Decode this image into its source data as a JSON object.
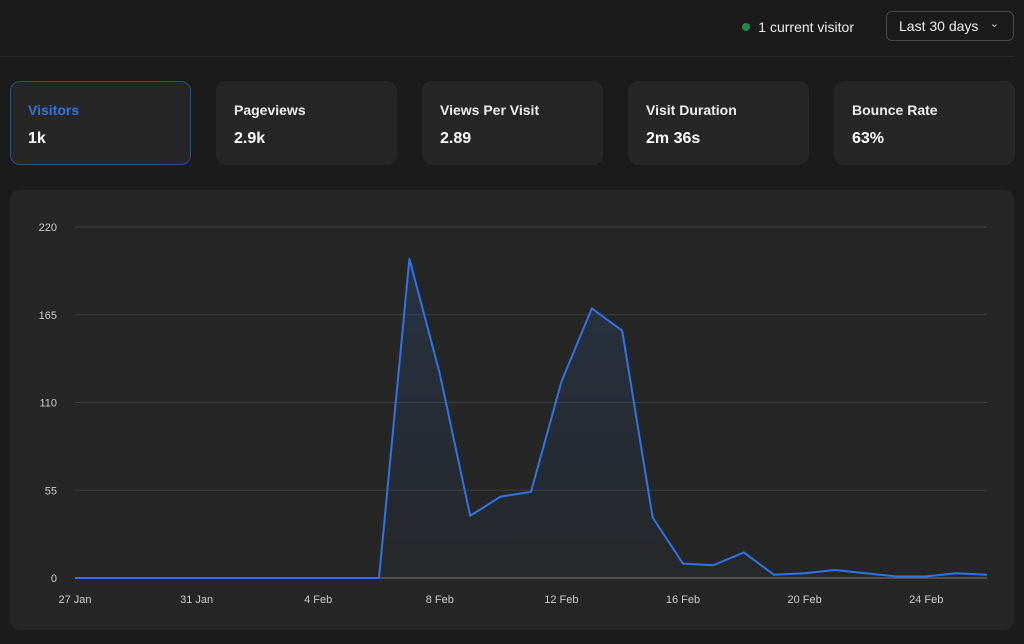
{
  "header": {
    "live_visitors": "1 current visitor",
    "live_color": "#1f8a4c",
    "range_label": "Last 30 days",
    "range_icon": "chevron-down-icon"
  },
  "metrics": [
    {
      "label": "Visitors",
      "value": "1k",
      "active": true
    },
    {
      "label": "Pageviews",
      "value": "2.9k",
      "active": false
    },
    {
      "label": "Views Per Visit",
      "value": "2.89",
      "active": false
    },
    {
      "label": "Visit Duration",
      "value": "2m 36s",
      "active": false
    },
    {
      "label": "Bounce Rate",
      "value": "63%",
      "active": false
    }
  ],
  "chart_data": {
    "type": "area",
    "accent": "#2f74e4",
    "ylim": [
      0,
      220
    ],
    "yticks": [
      "0",
      "55",
      "110",
      "165",
      "220"
    ],
    "xtick_labels": [
      "27 Jan",
      "31 Jan",
      "4 Feb",
      "8 Feb",
      "12 Feb",
      "16 Feb",
      "20 Feb",
      "24 Feb"
    ],
    "grid": true,
    "x": [
      "27 Jan",
      "28 Jan",
      "29 Jan",
      "30 Jan",
      "31 Jan",
      "1 Feb",
      "2 Feb",
      "3 Feb",
      "4 Feb",
      "5 Feb",
      "6 Feb",
      "7 Feb",
      "8 Feb",
      "9 Feb",
      "10 Feb",
      "11 Feb",
      "12 Feb",
      "13 Feb",
      "14 Feb",
      "15 Feb",
      "16 Feb",
      "17 Feb",
      "18 Feb",
      "19 Feb",
      "20 Feb",
      "21 Feb",
      "22 Feb",
      "23 Feb",
      "24 Feb",
      "25 Feb",
      "26 Feb"
    ],
    "values": [
      0,
      0,
      0,
      0,
      0,
      0,
      0,
      0,
      0,
      0,
      0,
      200,
      128,
      39,
      51,
      54,
      123,
      169,
      155,
      38,
      9,
      8,
      16,
      2,
      3,
      5,
      3,
      1,
      1,
      3,
      2
    ]
  }
}
